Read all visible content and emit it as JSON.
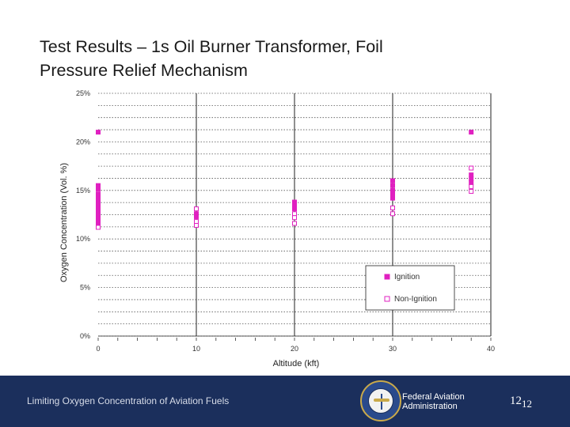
{
  "slide": {
    "title_line1": "Test Results – 1s Oil Burner Transformer, Foil",
    "title_line2": "Pressure Relief Mechanism"
  },
  "footer": {
    "left_text": "Limiting Oxygen Concentration of Aviation Fuels",
    "org_line1": "Federal Aviation",
    "org_line2": "Administration",
    "page_number": "12",
    "page_number_sub": "12",
    "bg_color": "#1b2f5c"
  },
  "chart_data": {
    "type": "scatter",
    "xlabel": "Altitude (kft)",
    "ylabel": "Oxygen Concentration (Vol. %)",
    "xlim": [
      0,
      40
    ],
    "ylim": [
      0,
      25
    ],
    "x_ticks": [
      "0",
      "10",
      "20",
      "30",
      "40"
    ],
    "y_ticks": [
      "0%",
      "5%",
      "10%",
      "15%",
      "20%",
      "25%"
    ],
    "grid": "dotted-horizontal, solid-vertical",
    "legend_position": "lower-right",
    "series": [
      {
        "name": "Ignition",
        "marker": "filled-square",
        "color": "#e020c0",
        "points": [
          [
            0,
            21.0
          ],
          [
            0,
            15.5
          ],
          [
            0,
            15.1
          ],
          [
            0,
            14.6
          ],
          [
            0,
            14.2
          ],
          [
            0,
            13.8
          ],
          [
            0,
            13.4
          ],
          [
            0,
            13.0
          ],
          [
            0,
            12.6
          ],
          [
            0,
            12.2
          ],
          [
            0,
            11.9
          ],
          [
            0,
            11.6
          ],
          [
            10,
            12.6
          ],
          [
            10,
            12.3
          ],
          [
            20,
            13.8
          ],
          [
            20,
            13.4
          ],
          [
            20,
            13.1
          ],
          [
            30,
            16.0
          ],
          [
            30,
            15.5
          ],
          [
            30,
            15.0
          ],
          [
            30,
            14.6
          ],
          [
            30,
            14.2
          ],
          [
            38,
            21.0
          ],
          [
            38,
            16.6
          ],
          [
            38,
            16.2
          ],
          [
            38,
            15.8
          ]
        ]
      },
      {
        "name": "Non-Ignition",
        "marker": "open-square",
        "color": "#e020c0",
        "points": [
          [
            0,
            11.2
          ],
          [
            10,
            13.1
          ],
          [
            10,
            11.8
          ],
          [
            10,
            11.4
          ],
          [
            20,
            12.6
          ],
          [
            20,
            12.2
          ],
          [
            20,
            11.6
          ],
          [
            30,
            13.2
          ],
          [
            30,
            12.6
          ],
          [
            38,
            17.3
          ],
          [
            38,
            15.4
          ],
          [
            38,
            14.9
          ]
        ]
      }
    ]
  }
}
